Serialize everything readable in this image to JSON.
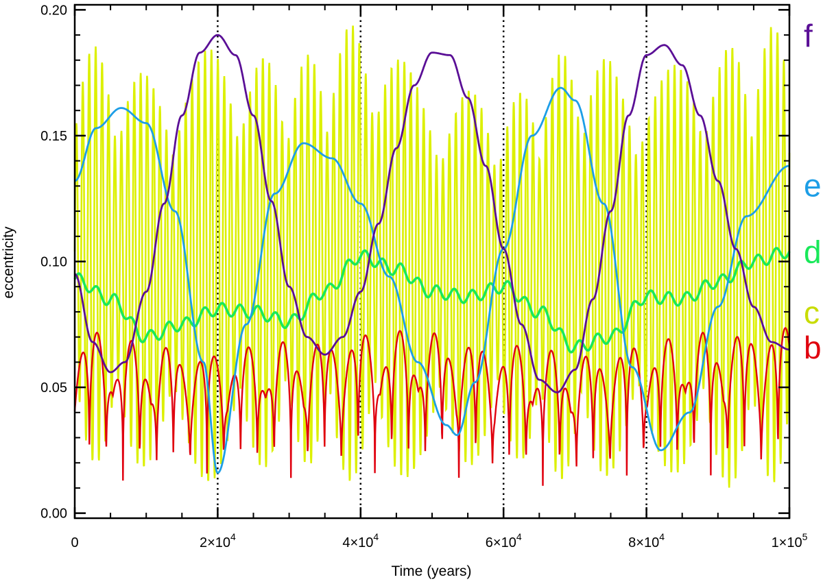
{
  "chart_data": {
    "type": "line",
    "title": "",
    "xlabel": "Time (years)",
    "ylabel": "eccentricity",
    "xlim": [
      0,
      100000
    ],
    "ylim": [
      -0.002,
      0.202
    ],
    "x_ticks": [
      {
        "value": 0,
        "mant": "0",
        "exp": ""
      },
      {
        "value": 20000,
        "mant": "2×10",
        "exp": "4"
      },
      {
        "value": 40000,
        "mant": "4×10",
        "exp": "4"
      },
      {
        "value": 60000,
        "mant": "6×10",
        "exp": "4"
      },
      {
        "value": 80000,
        "mant": "8×10",
        "exp": "4"
      },
      {
        "value": 100000,
        "mant": "1×10",
        "exp": "5"
      }
    ],
    "y_ticks": [
      {
        "value": 0.0,
        "label": "0.00"
      },
      {
        "value": 0.05,
        "label": "0.05"
      },
      {
        "value": 0.1,
        "label": "0.10"
      },
      {
        "value": 0.15,
        "label": "0.15"
      },
      {
        "value": 0.2,
        "label": "0.20"
      }
    ],
    "vertical_dotted_lines_at": [
      20000,
      40000,
      60000,
      80000
    ],
    "grid": false,
    "legend_placement": "right of plot, inline letters",
    "series": [
      {
        "name": "c",
        "color": "#dcf000",
        "style": "fast oscillation band",
        "x": [
          0,
          10000,
          20000,
          30000,
          40000,
          50000,
          60000,
          70000,
          80000,
          90000,
          100000
        ],
        "upper_envelope": [
          0.188,
          0.175,
          0.185,
          0.18,
          0.195,
          0.172,
          0.165,
          0.185,
          0.175,
          0.185,
          0.195
        ],
        "lower_envelope": [
          0.02,
          0.018,
          0.012,
          0.02,
          0.012,
          0.015,
          0.022,
          0.012,
          0.018,
          0.01,
          0.012
        ],
        "mean": [
          0.12,
          0.122,
          0.125,
          0.125,
          0.122,
          0.12,
          0.118,
          0.12,
          0.125,
          0.125,
          0.122
        ]
      },
      {
        "name": "b",
        "color": "#e0000e",
        "style": "spikes",
        "x": [
          0,
          10000,
          20000,
          30000,
          40000,
          50000,
          60000,
          70000,
          80000,
          90000,
          100000
        ],
        "upper_envelope": [
          0.092,
          0.085,
          0.08,
          0.085,
          0.09,
          0.09,
          0.085,
          0.08,
          0.085,
          0.09,
          0.095
        ],
        "lower_envelope": [
          0.016,
          0.012,
          0.016,
          0.014,
          0.016,
          0.015,
          0.012,
          0.01,
          0.016,
          0.015,
          0.013
        ]
      },
      {
        "name": "d",
        "color": "#19e85a",
        "x": [
          0,
          5000,
          10000,
          15000,
          20000,
          25000,
          30000,
          35000,
          40000,
          45000,
          50000,
          55000,
          60000,
          65000,
          70000,
          75000,
          80000,
          85000,
          90000,
          95000,
          100000
        ],
        "y": [
          0.093,
          0.085,
          0.07,
          0.075,
          0.081,
          0.08,
          0.076,
          0.088,
          0.102,
          0.097,
          0.088,
          0.086,
          0.09,
          0.08,
          0.066,
          0.07,
          0.086,
          0.085,
          0.092,
          0.1,
          0.104
        ]
      },
      {
        "name": "e",
        "color": "#1d9ee6",
        "x": [
          0,
          3000,
          6500,
          10000,
          14000,
          18000,
          20000,
          24000,
          28000,
          32000,
          36000,
          40000,
          44000,
          48000,
          52000,
          53500,
          56000,
          60000,
          64000,
          68000,
          70000,
          74000,
          78000,
          82000,
          86000,
          90000,
          94000,
          100000
        ],
        "y": [
          0.132,
          0.153,
          0.161,
          0.155,
          0.12,
          0.06,
          0.016,
          0.075,
          0.127,
          0.147,
          0.141,
          0.123,
          0.094,
          0.06,
          0.035,
          0.031,
          0.052,
          0.105,
          0.15,
          0.169,
          0.164,
          0.123,
          0.058,
          0.025,
          0.04,
          0.082,
          0.118,
          0.138
        ]
      },
      {
        "name": "f",
        "color": "#5a0f96",
        "x": [
          0,
          2500,
          5000,
          7000,
          10000,
          12500,
          15000,
          17500,
          20000,
          22500,
          25000,
          27500,
          30000,
          32500,
          35000,
          37500,
          40000,
          42500,
          45000,
          47500,
          50000,
          52500,
          55000,
          57500,
          60000,
          62500,
          65000,
          67500,
          70000,
          72500,
          75000,
          77500,
          80000,
          82500,
          85000,
          87500,
          90000,
          92500,
          95000,
          97500,
          100000
        ],
        "y": [
          0.095,
          0.068,
          0.056,
          0.06,
          0.088,
          0.123,
          0.158,
          0.183,
          0.19,
          0.182,
          0.158,
          0.124,
          0.09,
          0.07,
          0.063,
          0.07,
          0.088,
          0.115,
          0.145,
          0.17,
          0.183,
          0.182,
          0.165,
          0.138,
          0.105,
          0.075,
          0.053,
          0.048,
          0.057,
          0.085,
          0.12,
          0.158,
          0.182,
          0.186,
          0.178,
          0.158,
          0.132,
          0.105,
          0.082,
          0.068,
          0.065
        ]
      }
    ],
    "legend": [
      {
        "label": "f",
        "color": "#5a0f96",
        "y_value": 0.1895
      },
      {
        "label": "e",
        "color": "#1d9ee6",
        "y_value": 0.13
      },
      {
        "label": "d",
        "color": "#19e85a",
        "y_value": 0.1035
      },
      {
        "label": "c",
        "color": "#c8dc00",
        "y_value": 0.0795
      },
      {
        "label": "b",
        "color": "#e0000e",
        "y_value": 0.0655
      }
    ]
  }
}
